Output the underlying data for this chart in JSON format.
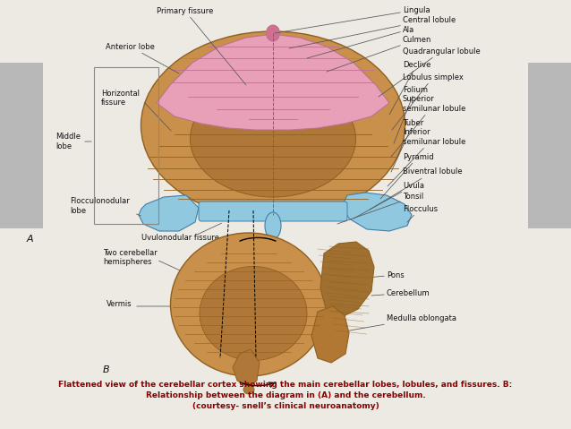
{
  "bg_color": "#ede9e3",
  "title_line1": "Flattened view of the cerebellar cortex showing the main cerebellar lobes, lobules, and fissures. B:",
  "title_line2": "Relationship between the diagram in (A) and the cerebellum.",
  "title_line3": "(courtesy- snell’s clinical neuroanatomy)",
  "title_color": "#8b0000",
  "label_fontsize": 6.0,
  "label_color": "#111111",
  "brown_color": "#c8904a",
  "brown_mid": "#b07838",
  "brown_dark": "#906020",
  "pink_color": "#e8a0b8",
  "pink_dark": "#c07090",
  "blue_color": "#90c8e0",
  "blue_dark": "#4080a8",
  "gray_band": "#b8b8b8",
  "box_edge": "#888888"
}
